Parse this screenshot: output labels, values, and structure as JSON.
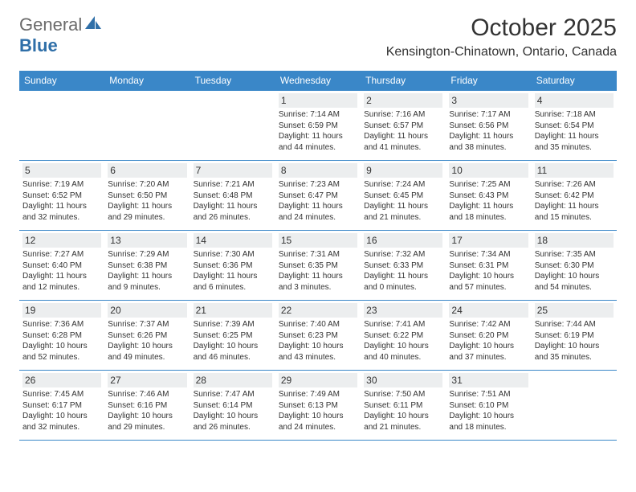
{
  "logo": {
    "text_general": "General",
    "text_blue": "Blue",
    "gray_color": "#6b6b6b",
    "blue_color": "#2f6fa8"
  },
  "colors": {
    "header_bg": "#3a87c8",
    "header_text": "#ffffff",
    "border": "#3a87c8",
    "daynum_bg": "#eceeef",
    "text": "#333333"
  },
  "title": {
    "month": "October 2025",
    "location": "Kensington-Chinatown, Ontario, Canada"
  },
  "day_names": [
    "Sunday",
    "Monday",
    "Tuesday",
    "Wednesday",
    "Thursday",
    "Friday",
    "Saturday"
  ],
  "weeks": [
    [
      {
        "n": "",
        "sunrise": "",
        "sunset": "",
        "day1": "",
        "day2": ""
      },
      {
        "n": "",
        "sunrise": "",
        "sunset": "",
        "day1": "",
        "day2": ""
      },
      {
        "n": "",
        "sunrise": "",
        "sunset": "",
        "day1": "",
        "day2": ""
      },
      {
        "n": "1",
        "sunrise": "Sunrise: 7:14 AM",
        "sunset": "Sunset: 6:59 PM",
        "day1": "Daylight: 11 hours",
        "day2": "and 44 minutes."
      },
      {
        "n": "2",
        "sunrise": "Sunrise: 7:16 AM",
        "sunset": "Sunset: 6:57 PM",
        "day1": "Daylight: 11 hours",
        "day2": "and 41 minutes."
      },
      {
        "n": "3",
        "sunrise": "Sunrise: 7:17 AM",
        "sunset": "Sunset: 6:56 PM",
        "day1": "Daylight: 11 hours",
        "day2": "and 38 minutes."
      },
      {
        "n": "4",
        "sunrise": "Sunrise: 7:18 AM",
        "sunset": "Sunset: 6:54 PM",
        "day1": "Daylight: 11 hours",
        "day2": "and 35 minutes."
      }
    ],
    [
      {
        "n": "5",
        "sunrise": "Sunrise: 7:19 AM",
        "sunset": "Sunset: 6:52 PM",
        "day1": "Daylight: 11 hours",
        "day2": "and 32 minutes."
      },
      {
        "n": "6",
        "sunrise": "Sunrise: 7:20 AM",
        "sunset": "Sunset: 6:50 PM",
        "day1": "Daylight: 11 hours",
        "day2": "and 29 minutes."
      },
      {
        "n": "7",
        "sunrise": "Sunrise: 7:21 AM",
        "sunset": "Sunset: 6:48 PM",
        "day1": "Daylight: 11 hours",
        "day2": "and 26 minutes."
      },
      {
        "n": "8",
        "sunrise": "Sunrise: 7:23 AM",
        "sunset": "Sunset: 6:47 PM",
        "day1": "Daylight: 11 hours",
        "day2": "and 24 minutes."
      },
      {
        "n": "9",
        "sunrise": "Sunrise: 7:24 AM",
        "sunset": "Sunset: 6:45 PM",
        "day1": "Daylight: 11 hours",
        "day2": "and 21 minutes."
      },
      {
        "n": "10",
        "sunrise": "Sunrise: 7:25 AM",
        "sunset": "Sunset: 6:43 PM",
        "day1": "Daylight: 11 hours",
        "day2": "and 18 minutes."
      },
      {
        "n": "11",
        "sunrise": "Sunrise: 7:26 AM",
        "sunset": "Sunset: 6:42 PM",
        "day1": "Daylight: 11 hours",
        "day2": "and 15 minutes."
      }
    ],
    [
      {
        "n": "12",
        "sunrise": "Sunrise: 7:27 AM",
        "sunset": "Sunset: 6:40 PM",
        "day1": "Daylight: 11 hours",
        "day2": "and 12 minutes."
      },
      {
        "n": "13",
        "sunrise": "Sunrise: 7:29 AM",
        "sunset": "Sunset: 6:38 PM",
        "day1": "Daylight: 11 hours",
        "day2": "and 9 minutes."
      },
      {
        "n": "14",
        "sunrise": "Sunrise: 7:30 AM",
        "sunset": "Sunset: 6:36 PM",
        "day1": "Daylight: 11 hours",
        "day2": "and 6 minutes."
      },
      {
        "n": "15",
        "sunrise": "Sunrise: 7:31 AM",
        "sunset": "Sunset: 6:35 PM",
        "day1": "Daylight: 11 hours",
        "day2": "and 3 minutes."
      },
      {
        "n": "16",
        "sunrise": "Sunrise: 7:32 AM",
        "sunset": "Sunset: 6:33 PM",
        "day1": "Daylight: 11 hours",
        "day2": "and 0 minutes."
      },
      {
        "n": "17",
        "sunrise": "Sunrise: 7:34 AM",
        "sunset": "Sunset: 6:31 PM",
        "day1": "Daylight: 10 hours",
        "day2": "and 57 minutes."
      },
      {
        "n": "18",
        "sunrise": "Sunrise: 7:35 AM",
        "sunset": "Sunset: 6:30 PM",
        "day1": "Daylight: 10 hours",
        "day2": "and 54 minutes."
      }
    ],
    [
      {
        "n": "19",
        "sunrise": "Sunrise: 7:36 AM",
        "sunset": "Sunset: 6:28 PM",
        "day1": "Daylight: 10 hours",
        "day2": "and 52 minutes."
      },
      {
        "n": "20",
        "sunrise": "Sunrise: 7:37 AM",
        "sunset": "Sunset: 6:26 PM",
        "day1": "Daylight: 10 hours",
        "day2": "and 49 minutes."
      },
      {
        "n": "21",
        "sunrise": "Sunrise: 7:39 AM",
        "sunset": "Sunset: 6:25 PM",
        "day1": "Daylight: 10 hours",
        "day2": "and 46 minutes."
      },
      {
        "n": "22",
        "sunrise": "Sunrise: 7:40 AM",
        "sunset": "Sunset: 6:23 PM",
        "day1": "Daylight: 10 hours",
        "day2": "and 43 minutes."
      },
      {
        "n": "23",
        "sunrise": "Sunrise: 7:41 AM",
        "sunset": "Sunset: 6:22 PM",
        "day1": "Daylight: 10 hours",
        "day2": "and 40 minutes."
      },
      {
        "n": "24",
        "sunrise": "Sunrise: 7:42 AM",
        "sunset": "Sunset: 6:20 PM",
        "day1": "Daylight: 10 hours",
        "day2": "and 37 minutes."
      },
      {
        "n": "25",
        "sunrise": "Sunrise: 7:44 AM",
        "sunset": "Sunset: 6:19 PM",
        "day1": "Daylight: 10 hours",
        "day2": "and 35 minutes."
      }
    ],
    [
      {
        "n": "26",
        "sunrise": "Sunrise: 7:45 AM",
        "sunset": "Sunset: 6:17 PM",
        "day1": "Daylight: 10 hours",
        "day2": "and 32 minutes."
      },
      {
        "n": "27",
        "sunrise": "Sunrise: 7:46 AM",
        "sunset": "Sunset: 6:16 PM",
        "day1": "Daylight: 10 hours",
        "day2": "and 29 minutes."
      },
      {
        "n": "28",
        "sunrise": "Sunrise: 7:47 AM",
        "sunset": "Sunset: 6:14 PM",
        "day1": "Daylight: 10 hours",
        "day2": "and 26 minutes."
      },
      {
        "n": "29",
        "sunrise": "Sunrise: 7:49 AM",
        "sunset": "Sunset: 6:13 PM",
        "day1": "Daylight: 10 hours",
        "day2": "and 24 minutes."
      },
      {
        "n": "30",
        "sunrise": "Sunrise: 7:50 AM",
        "sunset": "Sunset: 6:11 PM",
        "day1": "Daylight: 10 hours",
        "day2": "and 21 minutes."
      },
      {
        "n": "31",
        "sunrise": "Sunrise: 7:51 AM",
        "sunset": "Sunset: 6:10 PM",
        "day1": "Daylight: 10 hours",
        "day2": "and 18 minutes."
      },
      {
        "n": "",
        "sunrise": "",
        "sunset": "",
        "day1": "",
        "day2": ""
      }
    ]
  ]
}
